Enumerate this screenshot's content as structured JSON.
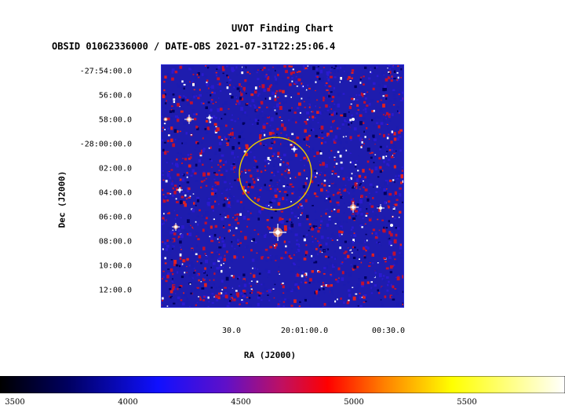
{
  "chart": {
    "title": "UVOT Finding Chart",
    "subtitle": "OBSID 01062336000 / DATE-OBS 2021-07-31T22:25:06.4",
    "ylabel": "Dec (J2000)",
    "xlabel": "RA (J2000)",
    "dec_ticks": [
      "-27:54:00.0",
      "56:00.0",
      "58:00.0",
      "-28:00:00.0",
      "02:00.0",
      "04:00.0",
      "06:00.0",
      "08:00.0",
      "10:00.0",
      "12:00.0"
    ],
    "ra_ticks": [
      "30.0",
      "20:01:00.0",
      "00:30.0"
    ],
    "colorbar_ticks": [
      "3500",
      "4000",
      "4500",
      "5000",
      "5500"
    ],
    "colors": {
      "frame": "#2b2bd8",
      "circle": "#e8c800",
      "background_noise": [
        "#1b1bb0",
        "#2a1ad0",
        "#c01030",
        "#e02020",
        "#000060",
        "#ffffff"
      ]
    }
  }
}
